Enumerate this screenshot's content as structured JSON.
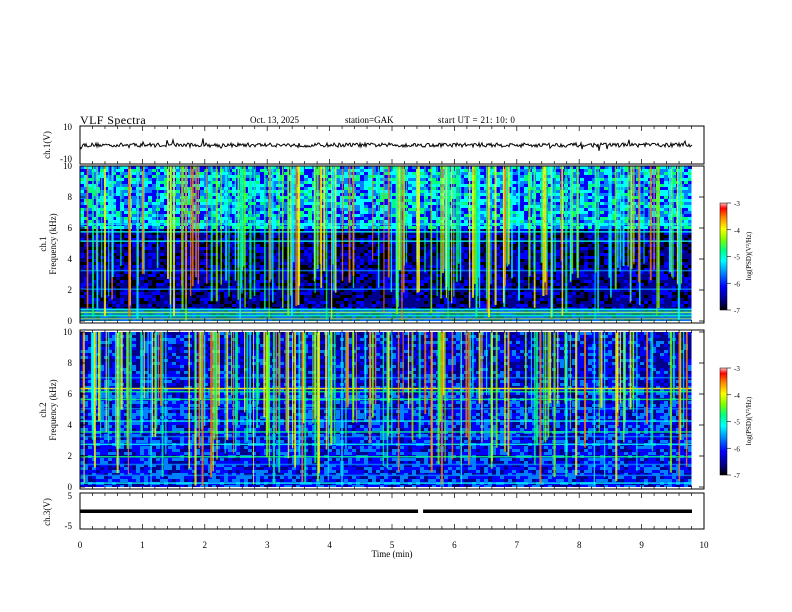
{
  "header": {
    "title": "VLF  Spectra",
    "date": "Oct. 13, 2025",
    "station": "station=GAK",
    "start_ut": "start  UT  =   21: 10: 0"
  },
  "chart_data": [
    {
      "type": "line",
      "panel": "ch1-waveform",
      "ylabel": "ch.1(V)",
      "ylim": [
        -10,
        10
      ],
      "yticks": [
        "10",
        "-10"
      ],
      "xlim": [
        0,
        10
      ],
      "baseline": 0,
      "color": "#000000"
    },
    {
      "type": "heatmap",
      "panel": "ch1-spectrogram",
      "ylabel_top": "ch.1",
      "ylabel": "Frequency  (kHz)",
      "ylim": [
        0,
        10
      ],
      "yticks": [
        "10",
        "8",
        "6",
        "4",
        "2",
        "0"
      ],
      "xlim": [
        0,
        9.8
      ],
      "colorbar": {
        "label": "log(PSD)(V²/Hz)",
        "range": [
          -7,
          -3
        ],
        "ticks": [
          "-3",
          "-4",
          "-5",
          "-6",
          "-7"
        ]
      }
    },
    {
      "type": "heatmap",
      "panel": "ch2-spectrogram",
      "ylabel_top": "ch.2",
      "ylabel": "Frequency  (kHz)",
      "ylim": [
        0,
        10
      ],
      "yticks": [
        "10",
        "8",
        "6",
        "4",
        "2",
        "0"
      ],
      "xlim": [
        0,
        9.8
      ],
      "colorbar": {
        "label": "log(PSD)(V²/Hz)",
        "range": [
          -7,
          -3
        ],
        "ticks": [
          "-3",
          "-4",
          "-5",
          "-6",
          "-7"
        ]
      }
    },
    {
      "type": "line",
      "panel": "ch3-waveform",
      "ylabel": "ch.3(V)",
      "ylim": [
        -5,
        5
      ],
      "yticks": [
        "5",
        "-5"
      ],
      "xlim": [
        0,
        10
      ],
      "level": 0,
      "gap_at": 5.45
    }
  ],
  "xaxis": {
    "label": "Time  (min)",
    "ticks": [
      "0",
      "1",
      "2",
      "3",
      "4",
      "5",
      "6",
      "7",
      "8",
      "9",
      "10"
    ],
    "range": [
      0,
      10
    ]
  },
  "colors": {
    "colormap": [
      "#000000",
      "#00008c",
      "#0000ff",
      "#0080ff",
      "#00ffff",
      "#00ff80",
      "#80ff00",
      "#ffff00",
      "#ff8000",
      "#ff0000"
    ],
    "axis": "#000000"
  }
}
